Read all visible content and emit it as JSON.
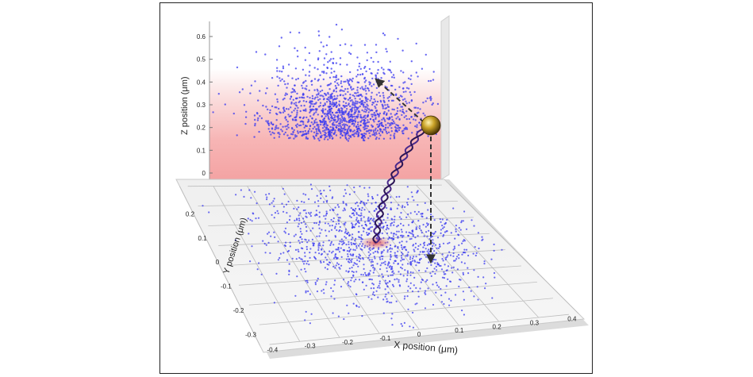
{
  "figure": {
    "z_axis": {
      "label": "Z position (μm)",
      "ticks": [
        "0.6",
        "0.5",
        "0.4",
        "0.3",
        "0.2",
        "0.1",
        "0"
      ]
    },
    "y_axis": {
      "label": "Y position (μm)",
      "ticks": [
        "0.2",
        "0.1",
        "0",
        "-0.1",
        "-0.2",
        "-0.3"
      ]
    },
    "x_axis": {
      "label": "X position (μm)",
      "ticks": [
        "-0.4",
        "-0.3",
        "-0.2",
        "-0.1",
        "0",
        "0.1",
        "0.2",
        "0.3",
        "0.4"
      ]
    },
    "colors": {
      "points": "#3a3af0",
      "gradient": "#f4a3a3",
      "bead": "#c9a227",
      "dna": "#4b2a8c",
      "anchor": "#e06060",
      "arrow": "#333333"
    }
  }
}
